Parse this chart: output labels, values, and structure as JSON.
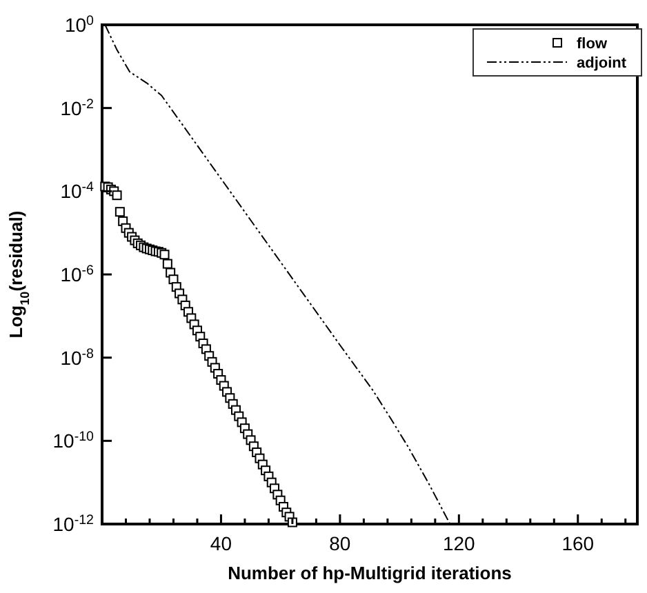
{
  "chart_data": {
    "type": "scatter",
    "xlabel": "Number of hp-Multigrid iterations",
    "ylabel": "Log$_{10}$(residual)",
    "log": "y",
    "grid": false,
    "legend": "top right",
    "xlim": [
      0,
      180
    ],
    "xticks": [
      {
        "value": 8,
        "label": null
      },
      {
        "value": 16,
        "label": null
      },
      {
        "value": 24,
        "label": null
      },
      {
        "value": 32,
        "label": null
      },
      40,
      {
        "value": 48,
        "label": null
      },
      {
        "value": 56,
        "label": null
      },
      {
        "value": 64,
        "label": null
      },
      {
        "value": 72,
        "label": null
      },
      80,
      {
        "value": 88,
        "label": null
      },
      {
        "value": 96,
        "label": null
      },
      {
        "value": 104,
        "label": null
      },
      {
        "value": 112,
        "label": null
      },
      120,
      {
        "value": 128,
        "label": null
      },
      {
        "value": 136,
        "label": null
      },
      {
        "value": 144,
        "label": null
      },
      {
        "value": 152,
        "label": null
      },
      160,
      {
        "value": 168,
        "label": null
      },
      {
        "value": 176,
        "label": null
      }
    ],
    "ylim": [
      1e-12,
      1
    ],
    "yticks": [
      {
        "value": 1,
        "label": "10$^{0}$"
      },
      {
        "value": 0.01,
        "label": "10$^{-2}$"
      },
      {
        "value": 0.0001,
        "label": "10$^{-4}$"
      },
      {
        "value": 1e-06,
        "label": "10$^{-6}$"
      },
      {
        "value": 1e-08,
        "label": "10$^{-8}$"
      },
      {
        "value": 1e-10,
        "label": "10$^{-10}$"
      },
      {
        "value": 1e-12,
        "label": "10$^{-12}$"
      }
    ],
    "series": [
      {
        "name": "flow",
        "marker": "square",
        "color": "#000000",
        "x": [
          1,
          2,
          3,
          4,
          5,
          6,
          7,
          8,
          9,
          10,
          11,
          12,
          13,
          14,
          15,
          16,
          17,
          18,
          19,
          20,
          21,
          22,
          23,
          24,
          25,
          26,
          27,
          28,
          29,
          30,
          31,
          32,
          33,
          34,
          35,
          36,
          37,
          38,
          39,
          40,
          41,
          42,
          43,
          44,
          45,
          46,
          47,
          48,
          49,
          50,
          51,
          52,
          53,
          54,
          55,
          56,
          57,
          58,
          59,
          60,
          61,
          62,
          63,
          64
        ],
        "values": [
          0.00013,
          0.000125,
          0.00011,
          0.0001,
          8e-05,
          3.2e-05,
          1.9e-05,
          1.3e-05,
          1e-05,
          8e-06,
          6.6e-06,
          5.6e-06,
          5e-06,
          4.5e-06,
          4.2e-06,
          4e-06,
          3.8e-06,
          3.6e-06,
          3.5e-06,
          3.3e-06,
          3e-06,
          1.8e-06,
          1.1e-06,
          7.6e-07,
          5e-07,
          3.5e-07,
          2.5e-07,
          1.8e-07,
          1.26e-07,
          8.9e-08,
          6.3e-08,
          4.5e-08,
          3.2e-08,
          2.2e-08,
          1.6e-08,
          1.1e-08,
          7.9e-09,
          5.7e-09,
          4.1e-09,
          2.9e-09,
          2.1e-09,
          1.5e-09,
          1.07e-09,
          7.7e-10,
          5.5e-10,
          3.9e-10,
          2.8e-10,
          2e-10,
          1.45e-10,
          1.04e-10,
          7.4e-11,
          5.3e-11,
          3.8e-11,
          2.7e-11,
          1.95e-11,
          1.4e-11,
          1e-11,
          7.2e-12,
          5.1e-12,
          3.7e-12,
          2.6e-12,
          1.9e-12,
          1.5e-12,
          1.1e-12
        ]
      },
      {
        "name": "adjoint",
        "type": "line",
        "marker": "none",
        "line_style": "dashed",
        "color": "#000000",
        "x": [
          1,
          5,
          9.3,
          15,
          20,
          30,
          40,
          50,
          60,
          70,
          80,
          91,
          97,
          103,
          110,
          117
        ],
        "values": [
          1,
          0.25,
          0.074,
          0.04,
          0.02,
          0.002,
          0.0002,
          2e-05,
          2e-06,
          2e-07,
          2e-08,
          1.66e-09,
          3.5e-10,
          7e-11,
          9e-12,
          1e-12
        ]
      }
    ]
  }
}
